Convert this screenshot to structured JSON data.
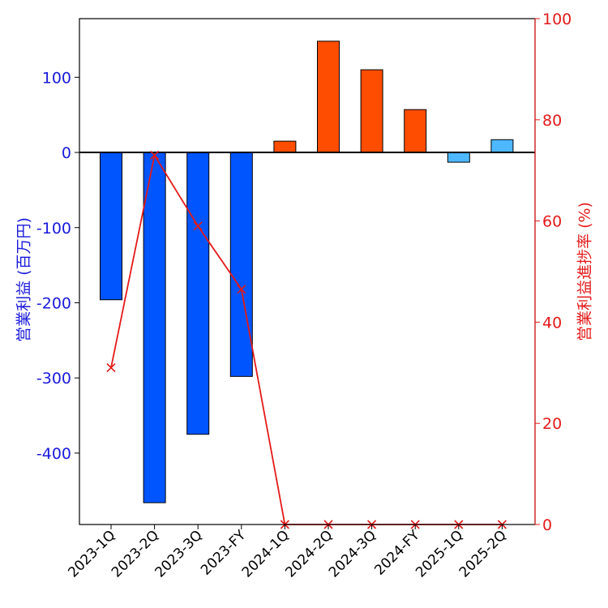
{
  "chart_data": {
    "type": "bar",
    "categories": [
      "2023-1Q",
      "2023-2Q",
      "2023-3Q",
      "2023-FY",
      "2024-1Q",
      "2024-2Q",
      "2024-3Q",
      "2024-FY",
      "2025-1Q",
      "2025-2Q"
    ],
    "series": [
      {
        "name": "営業利益",
        "axis": "left",
        "kind": "bar",
        "values": [
          -196,
          -466,
          -375,
          -298,
          15,
          148,
          110,
          57,
          -13,
          17
        ],
        "colors": [
          "#0055ff",
          "#0055ff",
          "#0055ff",
          "#0055ff",
          "#ff4d00",
          "#ff4d00",
          "#ff4d00",
          "#ff4d00",
          "#4db8ff",
          "#4db8ff"
        ]
      },
      {
        "name": "営業利益進捗率",
        "axis": "right",
        "kind": "line",
        "marker": "x",
        "color": "#e31a1a",
        "values": [
          31,
          73,
          59,
          46.5,
          0,
          0,
          0,
          0,
          0,
          0
        ]
      }
    ],
    "ylabel_left": "営業利益 (百万円)",
    "ylabel_right": "営業利益進捗率 (%)",
    "ylim_left": [
      -495,
      178
    ],
    "yticks_left": [
      100,
      0,
      -100,
      -200,
      -300,
      -400
    ],
    "ylim_right": [
      0,
      100
    ],
    "yticks_right": [
      0,
      20,
      40,
      60,
      80,
      100
    ],
    "left_axis_color": "#1a1adb",
    "right_axis_color": "#e31a1a",
    "zero_line": true,
    "grid": false
  }
}
